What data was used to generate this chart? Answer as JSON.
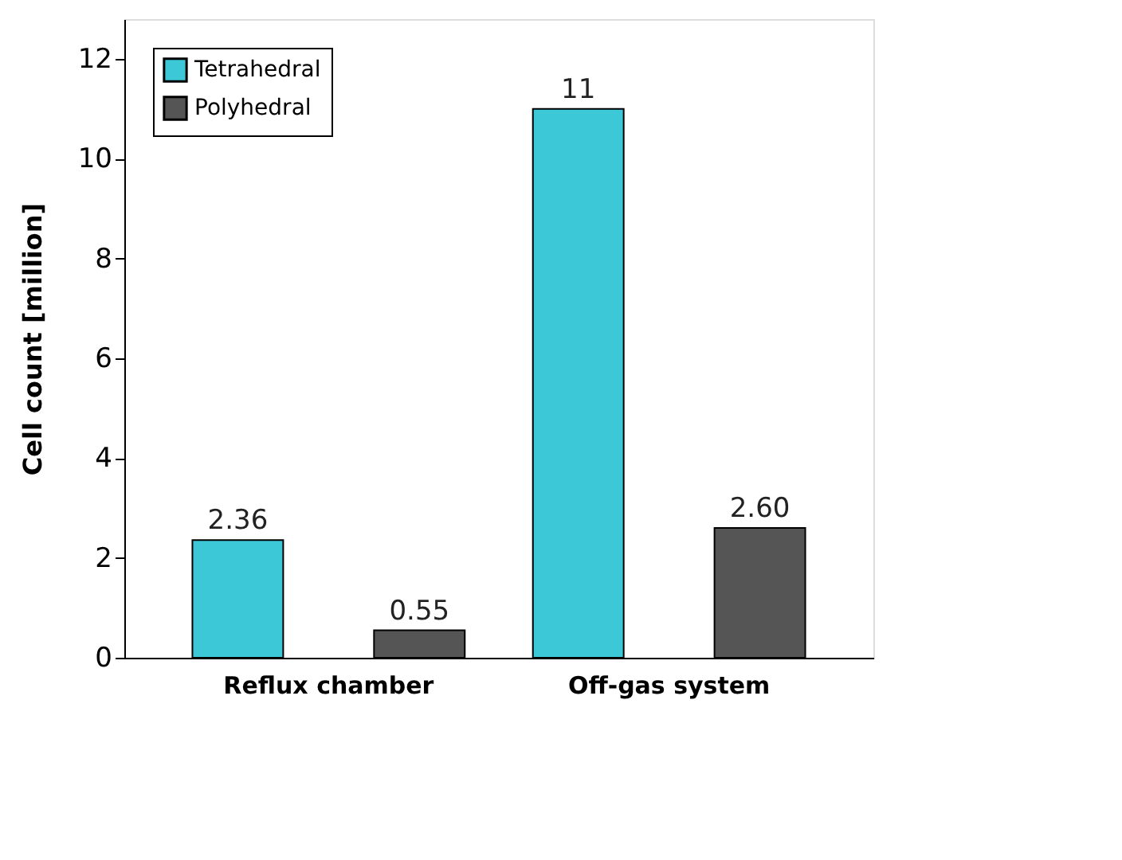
{
  "chart_data": {
    "type": "bar",
    "ylabel": "Cell count [million]",
    "categories": [
      "Reflux chamber",
      "Off-gas system"
    ],
    "series": [
      {
        "name": "Tetrahedral",
        "color": "#3cc8d6",
        "values": [
          2.36,
          11
        ],
        "value_labels": [
          "2.36",
          "11"
        ]
      },
      {
        "name": "Polyhedral",
        "color": "#555555",
        "values": [
          0.55,
          2.6
        ],
        "value_labels": [
          "0.55",
          "2.60"
        ]
      }
    ],
    "ylim": [
      0,
      12.8
    ],
    "yticks": [
      0,
      2,
      4,
      6,
      8,
      10,
      12
    ],
    "grid": false,
    "legend": "top left"
  }
}
